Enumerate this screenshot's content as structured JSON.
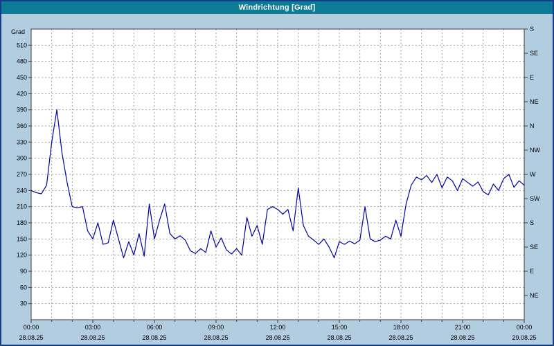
{
  "window": {
    "title": "Windrichtung [Grad]"
  },
  "colors": {
    "titlebar": "#0e7c96",
    "title_text": "#ffffff",
    "background": "#b2cde0",
    "border": "#123c8a",
    "plot_bg": "#ffffff",
    "grid": "#9e9e9e",
    "frame": "#3c3c3c",
    "line": "#0000a0",
    "axis_text": "#000000"
  },
  "chart_data": {
    "type": "line",
    "title": "Windrichtung [Grad]",
    "ylabel_left": "Grad",
    "ylim": [
      0,
      540
    ],
    "xlim_hours": [
      0,
      24
    ],
    "grid": true,
    "legend": "none",
    "y_ticks_left": [
      510,
      480,
      450,
      420,
      390,
      360,
      330,
      300,
      270,
      240,
      210,
      180,
      150,
      120,
      90,
      60,
      30
    ],
    "y_ticks_right": [
      {
        "deg": 540,
        "label": "S"
      },
      {
        "deg": 495,
        "label": "SE"
      },
      {
        "deg": 450,
        "label": "E"
      },
      {
        "deg": 405,
        "label": "NE"
      },
      {
        "deg": 360,
        "label": "N"
      },
      {
        "deg": 315,
        "label": "NW"
      },
      {
        "deg": 270,
        "label": "W"
      },
      {
        "deg": 225,
        "label": "SW"
      },
      {
        "deg": 180,
        "label": "S"
      },
      {
        "deg": 135,
        "label": "SE"
      },
      {
        "deg": 90,
        "label": "E"
      },
      {
        "deg": 45,
        "label": "NE"
      }
    ],
    "x_ticks": [
      {
        "hour": 0,
        "time": "00:00",
        "date": "28.08.25"
      },
      {
        "hour": 3,
        "time": "03:00",
        "date": "28.08.25"
      },
      {
        "hour": 6,
        "time": "06:00",
        "date": "28.08.25"
      },
      {
        "hour": 9,
        "time": "09:00",
        "date": "28.08.25"
      },
      {
        "hour": 12,
        "time": "12:00",
        "date": "28.08.25"
      },
      {
        "hour": 15,
        "time": "15:00",
        "date": "28.08.25"
      },
      {
        "hour": 18,
        "time": "18:00",
        "date": "28.08.25"
      },
      {
        "hour": 21,
        "time": "21:00",
        "date": "28.08.25"
      },
      {
        "hour": 24,
        "time": "00:00",
        "date": "29.08.25"
      }
    ],
    "x_start_hour": 0,
    "x_step_hours": 0.25,
    "series": [
      {
        "name": "Windrichtung",
        "unit": "Grad",
        "values": [
          240,
          236,
          234,
          250,
          330,
          390,
          310,
          255,
          210,
          208,
          210,
          165,
          150,
          180,
          140,
          143,
          185,
          150,
          115,
          145,
          120,
          160,
          118,
          215,
          150,
          185,
          215,
          160,
          150,
          156,
          148,
          128,
          123,
          132,
          125,
          165,
          135,
          152,
          130,
          122,
          132,
          120,
          190,
          155,
          175,
          140,
          205,
          210,
          205,
          196,
          205,
          165,
          245,
          175,
          155,
          148,
          140,
          150,
          135,
          115,
          145,
          140,
          146,
          141,
          148,
          210,
          150,
          145,
          148,
          155,
          150,
          185,
          155,
          215,
          250,
          265,
          260,
          268,
          255,
          270,
          245,
          265,
          258,
          240,
          262,
          255,
          248,
          256,
          238,
          232,
          252,
          240,
          262,
          270,
          246,
          258,
          250
        ]
      }
    ]
  }
}
